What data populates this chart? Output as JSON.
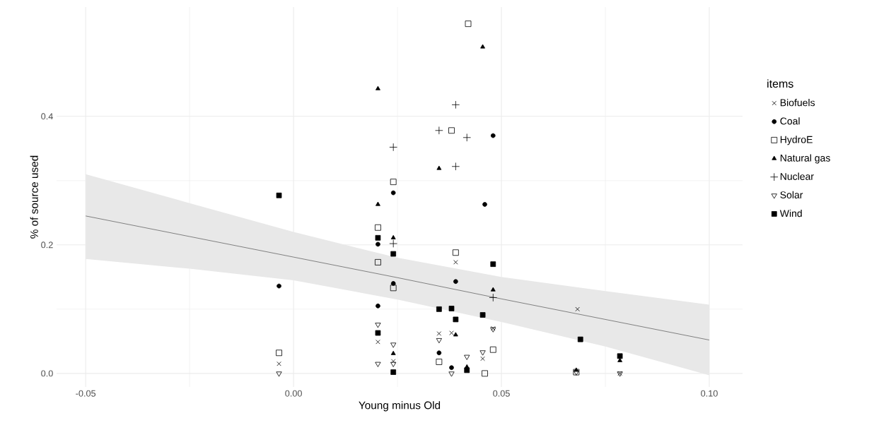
{
  "chart_data": {
    "type": "scatter",
    "xlabel": "Young minus Old",
    "ylabel": "% of source used",
    "legend_title": "items",
    "legend": "right",
    "grid": true,
    "xlim": [
      -0.057,
      0.108
    ],
    "ylim": [
      -0.021,
      0.57
    ],
    "xticks": [
      {
        "value": -0.05,
        "label": "-0.05"
      },
      {
        "value": 0,
        "label": "0.00"
      },
      {
        "value": 0.05,
        "label": "0.05"
      },
      {
        "value": 0.1,
        "label": "0.10"
      }
    ],
    "yticks": [
      {
        "value": 0,
        "label": "0.0"
      },
      {
        "value": 0.2,
        "label": "0.2"
      },
      {
        "value": 0.4,
        "label": "0.4"
      }
    ],
    "series": [
      {
        "name": "Biofuels",
        "color": "#000000",
        "marker": "x",
        "x": [
          -0.0035,
          0.0203,
          0.024,
          0.035,
          0.038,
          0.039,
          0.0455,
          0.048,
          0.0683,
          0.0785
        ],
        "values": [
          0.015,
          0.049,
          0.019,
          0.062,
          0.063,
          0.173,
          0.023,
          0.07,
          0.1,
          0.0
        ]
      },
      {
        "name": "Coal",
        "color": "#000000",
        "marker": "circle",
        "x": [
          -0.0035,
          0.0203,
          0.0203,
          0.024,
          0.024,
          0.035,
          0.038,
          0.039,
          0.046,
          0.048
        ],
        "values": [
          0.136,
          0.201,
          0.105,
          0.281,
          0.14,
          0.032,
          0.009,
          0.143,
          0.263,
          0.37
        ]
      },
      {
        "name": "HydroE",
        "color": "#000000",
        "marker": "square",
        "x": [
          -0.0035,
          0.0203,
          0.0203,
          0.024,
          0.024,
          0.035,
          0.038,
          0.039,
          0.042,
          0.046,
          0.048,
          0.068
        ],
        "values": [
          0.032,
          0.227,
          0.173,
          0.298,
          0.133,
          0.018,
          0.378,
          0.188,
          0.544,
          0.0,
          0.037,
          0.002
        ]
      },
      {
        "name": "Natural gas",
        "color": "#000000",
        "marker": "triangle-filled",
        "x": [
          0.0203,
          0.0203,
          0.024,
          0.024,
          0.035,
          0.039,
          0.0417,
          0.0455,
          0.048,
          0.068,
          0.0785
        ],
        "values": [
          0.443,
          0.263,
          0.211,
          0.031,
          0.319,
          0.06,
          0.01,
          0.508,
          0.13,
          0.005,
          0.02
        ]
      },
      {
        "name": "Nuclear",
        "color": "#000000",
        "marker": "plus",
        "x": [
          0.024,
          0.024,
          0.035,
          0.039,
          0.039,
          0.0417,
          0.048
        ],
        "values": [
          0.352,
          0.202,
          0.378,
          0.418,
          0.322,
          0.367,
          0.118
        ]
      },
      {
        "name": "Solar",
        "color": "#000000",
        "marker": "triangle-down",
        "x": [
          -0.0035,
          0.0203,
          0.0203,
          0.024,
          0.024,
          0.035,
          0.038,
          0.0417,
          0.0455,
          0.048,
          0.068,
          0.0785
        ],
        "values": [
          0.0,
          0.076,
          0.015,
          0.045,
          0.015,
          0.052,
          0.0,
          0.026,
          0.033,
          0.069,
          0.002,
          0.0
        ]
      },
      {
        "name": "Wind",
        "color": "#000000",
        "marker": "square-filled",
        "x": [
          -0.0035,
          0.0203,
          0.0203,
          0.024,
          0.024,
          0.035,
          0.038,
          0.039,
          0.0417,
          0.0455,
          0.048,
          0.069,
          0.0785
        ],
        "values": [
          0.277,
          0.211,
          0.063,
          0.186,
          0.002,
          0.1,
          0.101,
          0.084,
          0.005,
          0.091,
          0.17,
          0.053,
          0.027
        ]
      },
      {
        "type": "line",
        "color": "#666666",
        "marker": "none",
        "x": [
          -0.05,
          -0.025,
          0,
          0.025,
          0.05,
          0.075,
          0.1
        ],
        "values": [
          0.245,
          0.213,
          0.181,
          0.149,
          0.116,
          0.084,
          0.052
        ],
        "upper": [
          0.31,
          0.265,
          0.22,
          0.18,
          0.15,
          0.128,
          0.107
        ],
        "lower": [
          0.178,
          0.163,
          0.145,
          0.115,
          0.08,
          0.042,
          -0.003
        ]
      }
    ]
  }
}
